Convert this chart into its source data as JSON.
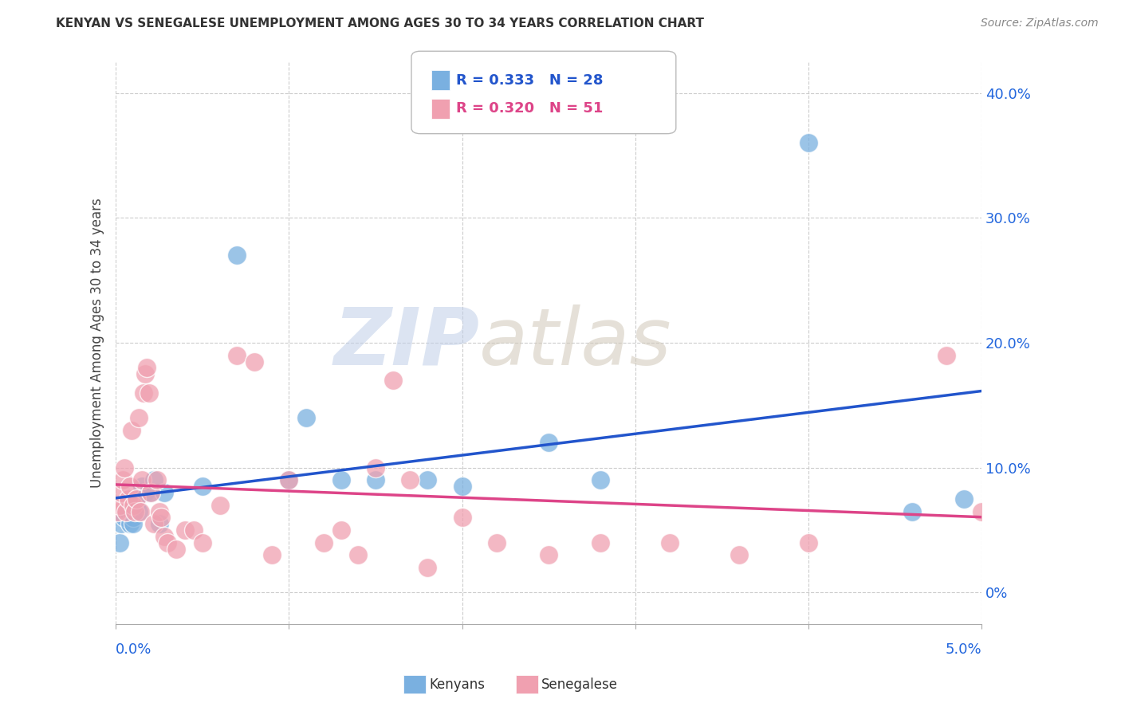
{
  "title": "KENYAN VS SENEGALESE UNEMPLOYMENT AMONG AGES 30 TO 34 YEARS CORRELATION CHART",
  "source": "Source: ZipAtlas.com",
  "ylabel": "Unemployment Among Ages 30 to 34 years",
  "ytick_vals": [
    0.0,
    0.1,
    0.2,
    0.3,
    0.4
  ],
  "ytick_labels": [
    "0%",
    "10.0%",
    "20.0%",
    "30.0%",
    "40.0%"
  ],
  "xlim": [
    0.0,
    0.05
  ],
  "ylim": [
    -0.025,
    0.425
  ],
  "kenyan_R": "0.333",
  "kenyan_N": "28",
  "senegalese_R": "0.320",
  "senegalese_N": "51",
  "kenyan_color": "#7ab0e0",
  "senegalese_color": "#f0a0b0",
  "kenyan_line_color": "#2255cc",
  "senegalese_line_color": "#dd4488",
  "watermark_zip": "ZIP",
  "watermark_atlas": "atlas",
  "kenyan_x": [
    0.0002,
    0.0003,
    0.0005,
    0.0007,
    0.0008,
    0.001,
    0.001,
    0.0012,
    0.0013,
    0.0015,
    0.0017,
    0.002,
    0.0022,
    0.0025,
    0.0028,
    0.005,
    0.007,
    0.01,
    0.011,
    0.013,
    0.015,
    0.018,
    0.02,
    0.025,
    0.028,
    0.04,
    0.046,
    0.049
  ],
  "kenyan_y": [
    0.04,
    0.055,
    0.06,
    0.065,
    0.055,
    0.06,
    0.055,
    0.07,
    0.065,
    0.085,
    0.08,
    0.08,
    0.09,
    0.055,
    0.08,
    0.085,
    0.27,
    0.09,
    0.14,
    0.09,
    0.09,
    0.09,
    0.085,
    0.12,
    0.09,
    0.36,
    0.065,
    0.075
  ],
  "senegalese_x": [
    0.0001,
    0.0002,
    0.0003,
    0.0004,
    0.0005,
    0.0006,
    0.0007,
    0.0008,
    0.0009,
    0.001,
    0.0011,
    0.0012,
    0.0013,
    0.0014,
    0.0015,
    0.0016,
    0.0017,
    0.0018,
    0.0019,
    0.002,
    0.0022,
    0.0024,
    0.0025,
    0.0026,
    0.0028,
    0.003,
    0.0035,
    0.004,
    0.0045,
    0.005,
    0.006,
    0.007,
    0.008,
    0.009,
    0.01,
    0.012,
    0.013,
    0.014,
    0.015,
    0.016,
    0.017,
    0.018,
    0.02,
    0.022,
    0.025,
    0.028,
    0.032,
    0.036,
    0.04,
    0.048,
    0.05
  ],
  "senegalese_y": [
    0.065,
    0.07,
    0.08,
    0.09,
    0.1,
    0.065,
    0.075,
    0.085,
    0.13,
    0.07,
    0.065,
    0.075,
    0.14,
    0.065,
    0.09,
    0.16,
    0.175,
    0.18,
    0.16,
    0.08,
    0.055,
    0.09,
    0.065,
    0.06,
    0.045,
    0.04,
    0.035,
    0.05,
    0.05,
    0.04,
    0.07,
    0.19,
    0.185,
    0.03,
    0.09,
    0.04,
    0.05,
    0.03,
    0.1,
    0.17,
    0.09,
    0.02,
    0.06,
    0.04,
    0.03,
    0.04,
    0.04,
    0.03,
    0.04,
    0.19,
    0.065
  ]
}
